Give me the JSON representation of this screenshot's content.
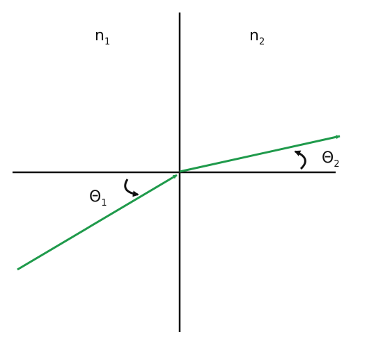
{
  "labels": [
    {
      "symbol": "n",
      "subscript": "1"
    },
    {
      "symbol": "n",
      "subscript": "2"
    },
    {
      "symbol": "Θ",
      "subscript": "1"
    },
    {
      "symbol": "Θ",
      "subscript": "2"
    }
  ]
}
